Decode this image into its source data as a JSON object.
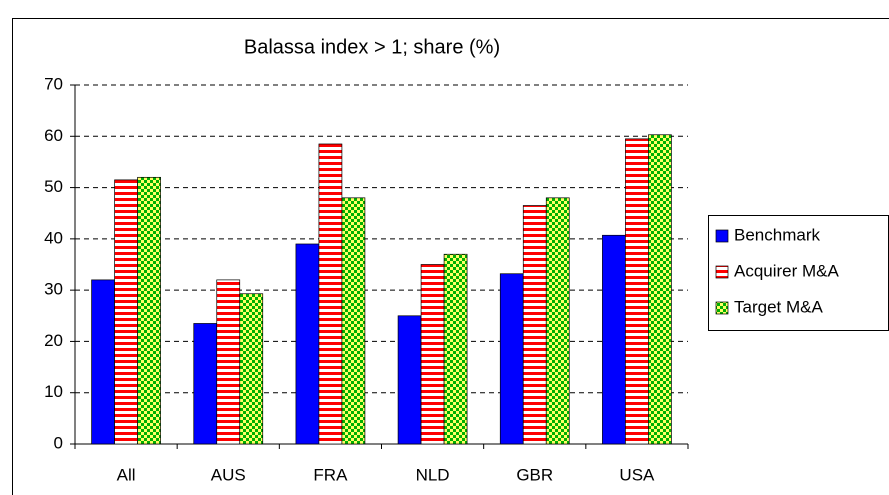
{
  "chart_data": {
    "type": "bar",
    "title": "Balassa index > 1; share (%)",
    "categories": [
      "All",
      "AUS",
      "FRA",
      "NLD",
      "GBR",
      "USA"
    ],
    "series": [
      {
        "name": "Benchmark",
        "color": "#0000ff",
        "pattern": "solid",
        "values": [
          32,
          23.5,
          39,
          25,
          33.2,
          40.7
        ]
      },
      {
        "name": "Acquirer M&A",
        "color": "#ff0000",
        "pattern": "stripes",
        "values": [
          51.5,
          32,
          58.5,
          35,
          46.5,
          59.5
        ]
      },
      {
        "name": "Target M&A",
        "color": "#00b000",
        "pattern": "checker",
        "values": [
          52,
          29.3,
          48,
          37,
          48,
          60.3
        ]
      }
    ],
    "ylim": [
      0,
      70
    ],
    "yticks": [
      0,
      10,
      20,
      30,
      40,
      50,
      60,
      70
    ],
    "grid": true,
    "legend": "right"
  }
}
